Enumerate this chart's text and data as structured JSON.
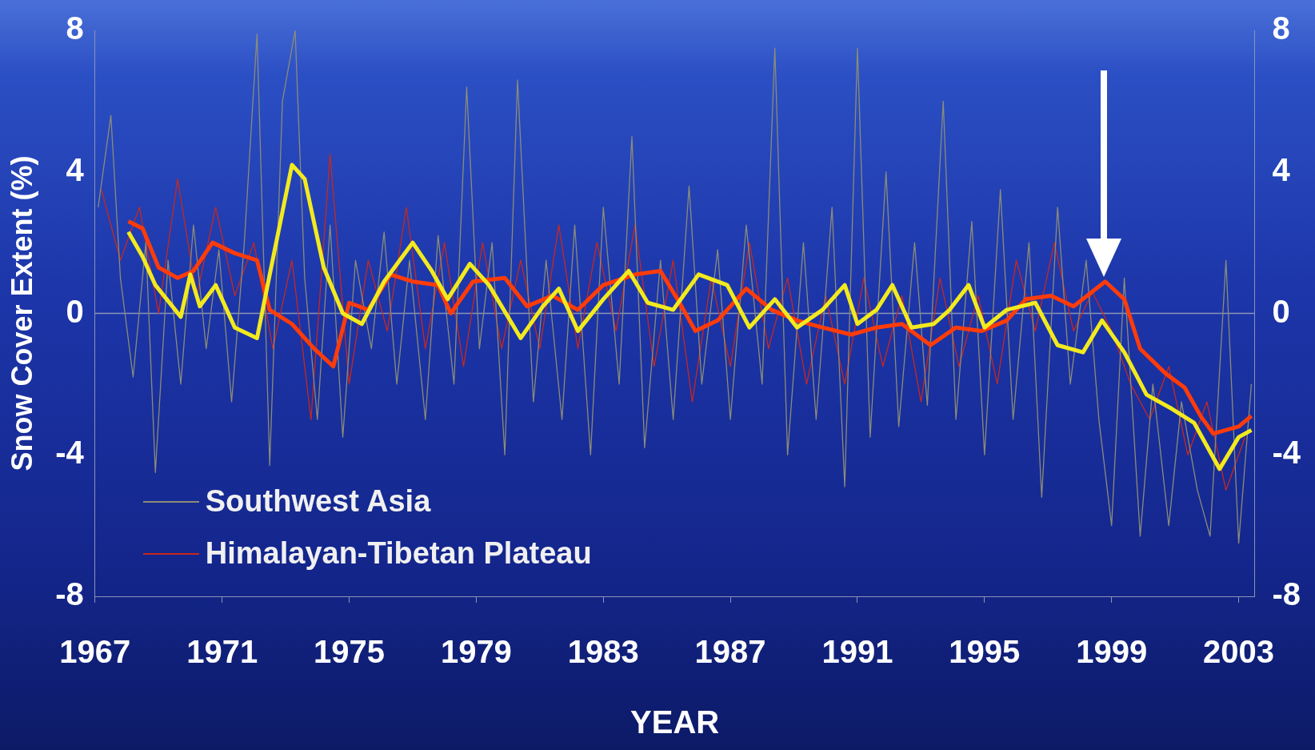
{
  "chart_data": {
    "type": "line",
    "xlabel": "YEAR",
    "ylabel": "Snow Cover Extent (%)",
    "xlim": [
      1967,
      2003.5
    ],
    "xticks": [
      1967,
      1971,
      1975,
      1979,
      1983,
      1987,
      1991,
      1995,
      1999,
      2003
    ],
    "ylim": [
      -8,
      8
    ],
    "yticks": [
      -8,
      -4,
      0,
      4,
      8
    ],
    "y2lim": [
      -8,
      8
    ],
    "y2ticks": [
      -8,
      -4,
      0,
      4,
      8
    ],
    "grid": false,
    "legend": "bottom left",
    "marker": "none",
    "line_style": "solid",
    "ref_lines": [
      {
        "axis": "y",
        "value": 0,
        "color": "#8a94b8"
      }
    ],
    "series": [
      {
        "name": "Southwest Asia",
        "color": "#8c8c78",
        "x": [
          1967.1,
          1967.5,
          1967.8,
          1968.2,
          1968.6,
          1968.9,
          1969.3,
          1969.7,
          1970.1,
          1970.5,
          1970.9,
          1971.3,
          1971.7,
          1972.1,
          1972.5,
          1972.9,
          1973.3,
          1973.6,
          1974.0,
          1974.4,
          1974.8,
          1975.2,
          1975.7,
          1976.1,
          1976.5,
          1976.9,
          1977.4,
          1977.8,
          1978.3,
          1978.7,
          1979.1,
          1979.5,
          1979.9,
          1980.3,
          1980.8,
          1981.2,
          1981.7,
          1982.1,
          1982.6,
          1983.0,
          1983.5,
          1983.9,
          1984.3,
          1984.8,
          1985.2,
          1985.7,
          1986.1,
          1986.6,
          1987.0,
          1987.5,
          1988.0,
          1988.4,
          1988.8,
          1989.3,
          1989.7,
          1990.2,
          1990.6,
          1991.0,
          1991.4,
          1991.9,
          1992.3,
          1992.8,
          1993.2,
          1993.7,
          1994.1,
          1994.6,
          1995.0,
          1995.5,
          1995.9,
          1996.4,
          1996.8,
          1997.3,
          1997.7,
          1998.2,
          1998.6,
          1999.0,
          1999.4,
          1999.9,
          2000.3,
          2000.8,
          2001.2,
          2001.7,
          2002.1,
          2002.6,
          2003.0,
          2003.4
        ],
        "values": [
          3,
          5.6,
          1,
          -1.8,
          2,
          -4.5,
          1.5,
          -2,
          2.5,
          -1,
          1.8,
          -2.5,
          2,
          7.9,
          -4.3,
          6,
          8,
          1,
          -3,
          2.5,
          -3.5,
          1.5,
          -1,
          2.3,
          -2,
          1.5,
          -3,
          2.2,
          -2,
          6.4,
          -1,
          2,
          -4,
          6.6,
          -2.5,
          1.5,
          -3,
          2.5,
          -4,
          3,
          -2,
          5,
          -3.8,
          1.5,
          -3,
          3.6,
          -2,
          1.8,
          -3,
          2.5,
          -2,
          7.5,
          -4,
          2,
          -3,
          3,
          -4.9,
          7.5,
          -3.5,
          4,
          -3.2,
          2,
          -2.6,
          6,
          -3,
          2.6,
          -4,
          3.5,
          -3,
          2,
          -5.2,
          3,
          -2,
          1.5,
          -3,
          -6,
          1,
          -6.3,
          -2,
          -6,
          -2.5,
          -5,
          -6.3,
          1.5,
          -6.5,
          -2
        ]
      },
      {
        "name": "Himalayan-Tibetan Plateau",
        "color": "#c8281e",
        "x": [
          1967.2,
          1967.8,
          1968.4,
          1969.0,
          1969.6,
          1970.2,
          1970.8,
          1971.4,
          1972.0,
          1972.6,
          1973.2,
          1973.8,
          1974.4,
          1975.0,
          1975.6,
          1976.2,
          1976.8,
          1977.4,
          1978.0,
          1978.6,
          1979.2,
          1979.8,
          1980.4,
          1981.0,
          1981.6,
          1982.2,
          1982.8,
          1983.4,
          1984.0,
          1984.6,
          1985.2,
          1985.8,
          1986.4,
          1987.0,
          1987.6,
          1988.2,
          1988.8,
          1989.4,
          1990.0,
          1990.6,
          1991.2,
          1991.8,
          1992.4,
          1993.0,
          1993.6,
          1994.2,
          1994.8,
          1995.4,
          1996.0,
          1996.6,
          1997.2,
          1997.8,
          1998.4,
          1999.0,
          1999.6,
          2000.2,
          2000.8,
          2001.4,
          2002.0,
          2002.6,
          2003.2
        ],
        "values": [
          3.5,
          1.5,
          3,
          0,
          3.8,
          0.5,
          3,
          0.5,
          2,
          -1,
          1.5,
          -3,
          4.5,
          -2,
          1.5,
          -0.5,
          3,
          -1,
          2,
          -1.5,
          2,
          -1,
          1.5,
          -1,
          2.5,
          -1,
          2,
          -0.5,
          2.5,
          -1.5,
          1.5,
          -2.5,
          1,
          -1.5,
          2,
          -1,
          1,
          -2,
          0.5,
          -2,
          1,
          -1.5,
          0.5,
          -2.5,
          1,
          -1.5,
          0.5,
          -2,
          1.5,
          -0.5,
          2,
          -0.5,
          0.6,
          -0.5,
          -2,
          -3,
          -1.5,
          -4,
          -2.5,
          -5,
          -3.5
        ]
      },
      {
        "color": "#f2ea1e",
        "x": [
          1968.05,
          1968.5,
          1968.9,
          1969.7,
          1970.0,
          1970.3,
          1970.8,
          1971.4,
          1972.1,
          1972.5,
          1973.2,
          1973.6,
          1974.2,
          1974.8,
          1975.4,
          1976.1,
          1977.0,
          1977.6,
          1978.1,
          1978.8,
          1979.4,
          1980.4,
          1981.1,
          1981.6,
          1982.2,
          1983.0,
          1983.8,
          1984.4,
          1985.2,
          1986.0,
          1986.9,
          1987.6,
          1988.4,
          1989.1,
          1989.9,
          1990.6,
          1991.0,
          1991.6,
          1992.1,
          1992.7,
          1993.4,
          1993.9,
          1994.5,
          1995.0,
          1995.7,
          1996.6,
          1997.3,
          1998.1,
          1998.7,
          1999.4,
          2000.1,
          2000.9,
          2001.6,
          2002.4,
          2003.0,
          2003.4
        ],
        "values": [
          2.3,
          1.6,
          0.8,
          -0.1,
          1.1,
          0.2,
          0.8,
          -0.4,
          -0.7,
          1.1,
          4.2,
          3.8,
          1.3,
          0,
          -0.3,
          0.9,
          2,
          1.2,
          0.4,
          1.4,
          0.8,
          -0.7,
          0.2,
          0.7,
          -0.5,
          0.4,
          1.2,
          0.3,
          0.1,
          1.1,
          0.8,
          -0.4,
          0.4,
          -0.4,
          0.1,
          0.8,
          -0.3,
          0.1,
          0.8,
          -0.4,
          -0.3,
          0.1,
          0.8,
          -0.4,
          0.1,
          0.3,
          -0.9,
          -1.1,
          -0.2,
          -1.1,
          -2.3,
          -2.7,
          -3.1,
          -4.4,
          -3.5,
          -3.3
        ]
      },
      {
        "color": "#ff3c0a",
        "x": [
          1968.05,
          1968.5,
          1969.0,
          1969.6,
          1970.1,
          1970.7,
          1971.4,
          1972.1,
          1972.5,
          1973.2,
          1973.9,
          1974.5,
          1975.0,
          1975.6,
          1976.3,
          1977.0,
          1977.8,
          1978.2,
          1978.9,
          1979.9,
          1980.6,
          1981.4,
          1982.2,
          1983.0,
          1984.0,
          1984.8,
          1985.4,
          1985.9,
          1986.6,
          1987.5,
          1988.3,
          1989.1,
          1989.9,
          1990.8,
          1991.6,
          1992.4,
          1993.3,
          1994.1,
          1994.9,
          1995.7,
          1996.3,
          1997.1,
          1997.8,
          1998.8,
          1999.4,
          1999.9,
          2000.7,
          2001.3,
          2001.8,
          2002.2,
          2003.0,
          2003.4
        ],
        "values": [
          2.6,
          2.4,
          1.3,
          1,
          1.2,
          2,
          1.7,
          1.5,
          0.1,
          -0.3,
          -1,
          -1.5,
          0.3,
          0.1,
          1.1,
          0.9,
          0.8,
          0,
          0.9,
          1,
          0.2,
          0.5,
          0.1,
          0.8,
          1.1,
          1.2,
          0.3,
          -0.5,
          -0.2,
          0.7,
          0.1,
          -0.2,
          -0.4,
          -0.6,
          -0.4,
          -0.3,
          -0.9,
          -0.4,
          -0.5,
          -0.2,
          0.4,
          0.5,
          0.2,
          0.9,
          0.4,
          -1,
          -1.7,
          -2.1,
          -2.9,
          -3.4,
          -3.2,
          -2.9
        ]
      }
    ]
  }
}
